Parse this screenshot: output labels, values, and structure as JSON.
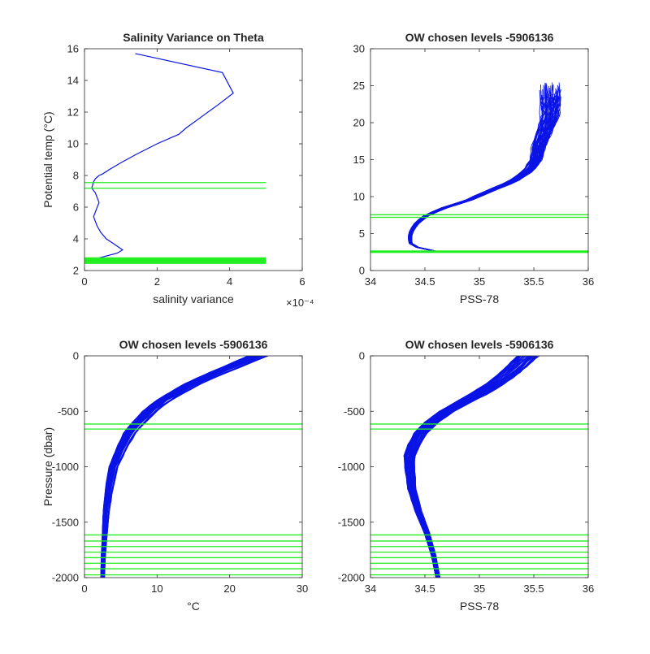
{
  "figure": {
    "background": "#ffffff"
  },
  "colors": {
    "profile": "#0a14e6",
    "levels": "#22ee22",
    "axis": "#262626"
  },
  "chart_data": [
    {
      "type": "line",
      "title": "Salinity Variance on Theta",
      "xlabel": "salinity variance",
      "ylabel": "Potential temp (°C)",
      "x_exponent_label": "×10⁻⁴",
      "xlim": [
        0,
        6
      ],
      "ylim": [
        2,
        16
      ],
      "xticks": [
        "0",
        "2",
        "4",
        "6"
      ],
      "yticks": [
        "2",
        "4",
        "6",
        "8",
        "10",
        "12",
        "14",
        "16"
      ],
      "series": [
        {
          "role": "variance-profile",
          "x": [
            1.4,
            3.8,
            4.1,
            3.7,
            2.8,
            2.6,
            2.0,
            1.4,
            1.0,
            0.7,
            0.5,
            0.4,
            0.3,
            0.25,
            0.2,
            0.3,
            0.35,
            0.4,
            0.35,
            0.3,
            0.25,
            0.3,
            0.35,
            0.45,
            0.6,
            0.8,
            1.05,
            0.9,
            0.4,
            0.15
          ],
          "y": [
            15.7,
            14.5,
            13.2,
            12.5,
            11.0,
            10.6,
            10.0,
            9.3,
            8.8,
            8.4,
            8.1,
            8.0,
            7.8,
            7.6,
            7.2,
            6.9,
            6.6,
            6.3,
            6.0,
            5.7,
            5.4,
            5.1,
            4.8,
            4.4,
            4.0,
            3.7,
            3.3,
            3.1,
            2.8,
            2.6
          ]
        }
      ],
      "level_lines": {
        "x_range": [
          0,
          5
        ],
        "y_values": [
          7.55,
          7.2,
          2.45,
          2.5,
          2.55,
          2.6,
          2.65,
          2.7,
          2.75,
          2.8
        ]
      }
    },
    {
      "type": "line",
      "title": "OW chosen levels -5906136",
      "xlabel": "PSS-78",
      "ylabel": "",
      "xlim": [
        34,
        36
      ],
      "ylim": [
        0,
        30
      ],
      "xticks": [
        "34",
        "34.5",
        "35",
        "35.5",
        "36"
      ],
      "yticks": [
        "0",
        "5",
        "10",
        "15",
        "20",
        "25",
        "30"
      ],
      "profile_envelope": {
        "x": [
          34.6,
          34.45,
          34.37,
          34.36,
          34.38,
          34.43,
          34.52,
          34.68,
          34.9,
          35.05,
          35.3,
          35.45,
          35.52,
          35.55,
          35.6,
          35.65,
          35.65
        ],
        "y": [
          2.6,
          3.0,
          3.6,
          4.5,
          5.5,
          6.5,
          7.5,
          8.5,
          9.5,
          10.5,
          12.0,
          13.5,
          15.0,
          17.0,
          19.0,
          21.0,
          24.0
        ],
        "count": 60,
        "spread_x": 0.18,
        "top_y_max": 25.5
      },
      "level_lines": {
        "y_values": [
          7.55,
          7.2,
          2.45,
          2.55,
          2.65
        ]
      }
    },
    {
      "type": "line",
      "title": "OW chosen levels -5906136",
      "xlabel": "°C",
      "ylabel": "Pressure (dbar)",
      "xlim": [
        0,
        30
      ],
      "ylim": [
        -2000,
        0
      ],
      "xticks": [
        "0",
        "10",
        "20",
        "30"
      ],
      "yticks": [
        "-2000",
        "-1500",
        "-1000",
        "-500",
        "0"
      ],
      "profile_envelope": {
        "x": [
          2.5,
          2.6,
          2.8,
          3.0,
          3.4,
          4.0,
          5.0,
          6.2,
          7.5,
          9.0,
          10.5,
          12.5,
          15.0,
          18.0,
          21.0,
          24.0
        ],
        "y": [
          -2000,
          -1800,
          -1600,
          -1400,
          -1200,
          -1000,
          -850,
          -700,
          -600,
          -500,
          -420,
          -340,
          -250,
          -160,
          -80,
          0
        ],
        "count": 60,
        "spread_x": 2.2
      },
      "level_lines": {
        "y_values": [
          -615,
          -660,
          -1615,
          -1670,
          -1720,
          -1770,
          -1820,
          -1870,
          -1920,
          -1975
        ]
      }
    },
    {
      "type": "line",
      "title": "OW chosen levels -5906136",
      "xlabel": "PSS-78",
      "ylabel": "",
      "xlim": [
        34,
        36
      ],
      "ylim": [
        -2000,
        0
      ],
      "xticks": [
        "34",
        "34.5",
        "35",
        "35.5",
        "36"
      ],
      "yticks": [
        "-2000",
        "-1500",
        "-1000",
        "-500",
        "0"
      ],
      "profile_envelope": {
        "x": [
          34.62,
          34.58,
          34.52,
          34.44,
          34.38,
          34.36,
          34.36,
          34.4,
          34.46,
          34.56,
          34.7,
          34.85,
          35.0,
          35.15,
          35.3,
          35.45
        ],
        "y": [
          -2000,
          -1800,
          -1600,
          -1400,
          -1200,
          -1000,
          -900,
          -800,
          -700,
          -600,
          -500,
          -420,
          -340,
          -250,
          -140,
          0
        ],
        "count": 60,
        "spread_x": 0.16
      },
      "level_lines": {
        "y_values": [
          -615,
          -660,
          -1615,
          -1670,
          -1720,
          -1770,
          -1820,
          -1870,
          -1920,
          -1975
        ]
      }
    }
  ]
}
